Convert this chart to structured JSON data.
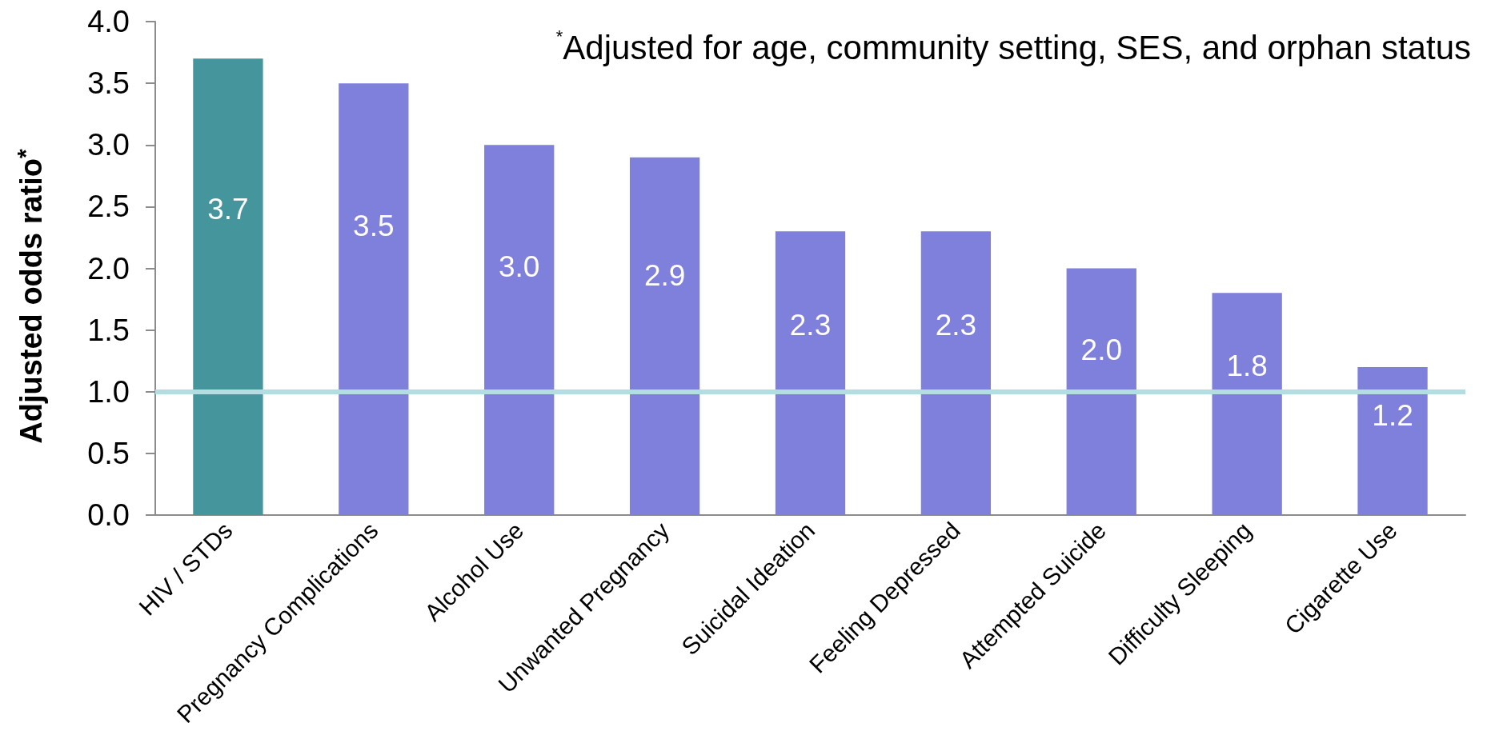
{
  "chart_data": {
    "type": "bar",
    "ylabel": "Adjusted odds ratio$^{*}$",
    "annotations": [
      "$^{*}$Adjusted for age, community setting, SES, and orphan status"
    ],
    "categories": [
      "HIV / STDs",
      "Pregnancy Complications",
      "Alcohol Use",
      "Unwanted Pregnancy",
      "Suicidal Ideation",
      "Feeling Depressed",
      "Attempted Suicide",
      "Difficulty Sleeping",
      "Cigarette Use"
    ],
    "values": [
      3.7,
      3.5,
      3.0,
      2.9,
      2.3,
      2.3,
      2.0,
      1.8,
      1.2
    ],
    "colors": [
      "#45959c",
      "#7f7fdc",
      "#7f7fdc",
      "#7f7fdc",
      "#7f7fdc",
      "#7f7fdc",
      "#7f7fdc",
      "#7f7fdc",
      "#7f7fdc"
    ],
    "value_labels": [
      "3.7",
      "3.5",
      "3.0",
      "2.9",
      "2.3",
      "2.3",
      "2.0",
      "1.8",
      "1.2"
    ],
    "ylim": [
      0,
      4
    ],
    "yticks": [
      {
        "value": 0,
        "label": "0.0"
      },
      0.5,
      {
        "value": 1,
        "label": "1.0"
      },
      1.5,
      {
        "value": 2,
        "label": "2.0"
      },
      2.5,
      {
        "value": 3,
        "label": "3.0"
      },
      3.5,
      {
        "value": 4,
        "label": "4.0"
      }
    ],
    "ref_lines": [
      {
        "axis": "y",
        "value": 1,
        "color": "#b3dde0"
      }
    ],
    "grid": false
  }
}
